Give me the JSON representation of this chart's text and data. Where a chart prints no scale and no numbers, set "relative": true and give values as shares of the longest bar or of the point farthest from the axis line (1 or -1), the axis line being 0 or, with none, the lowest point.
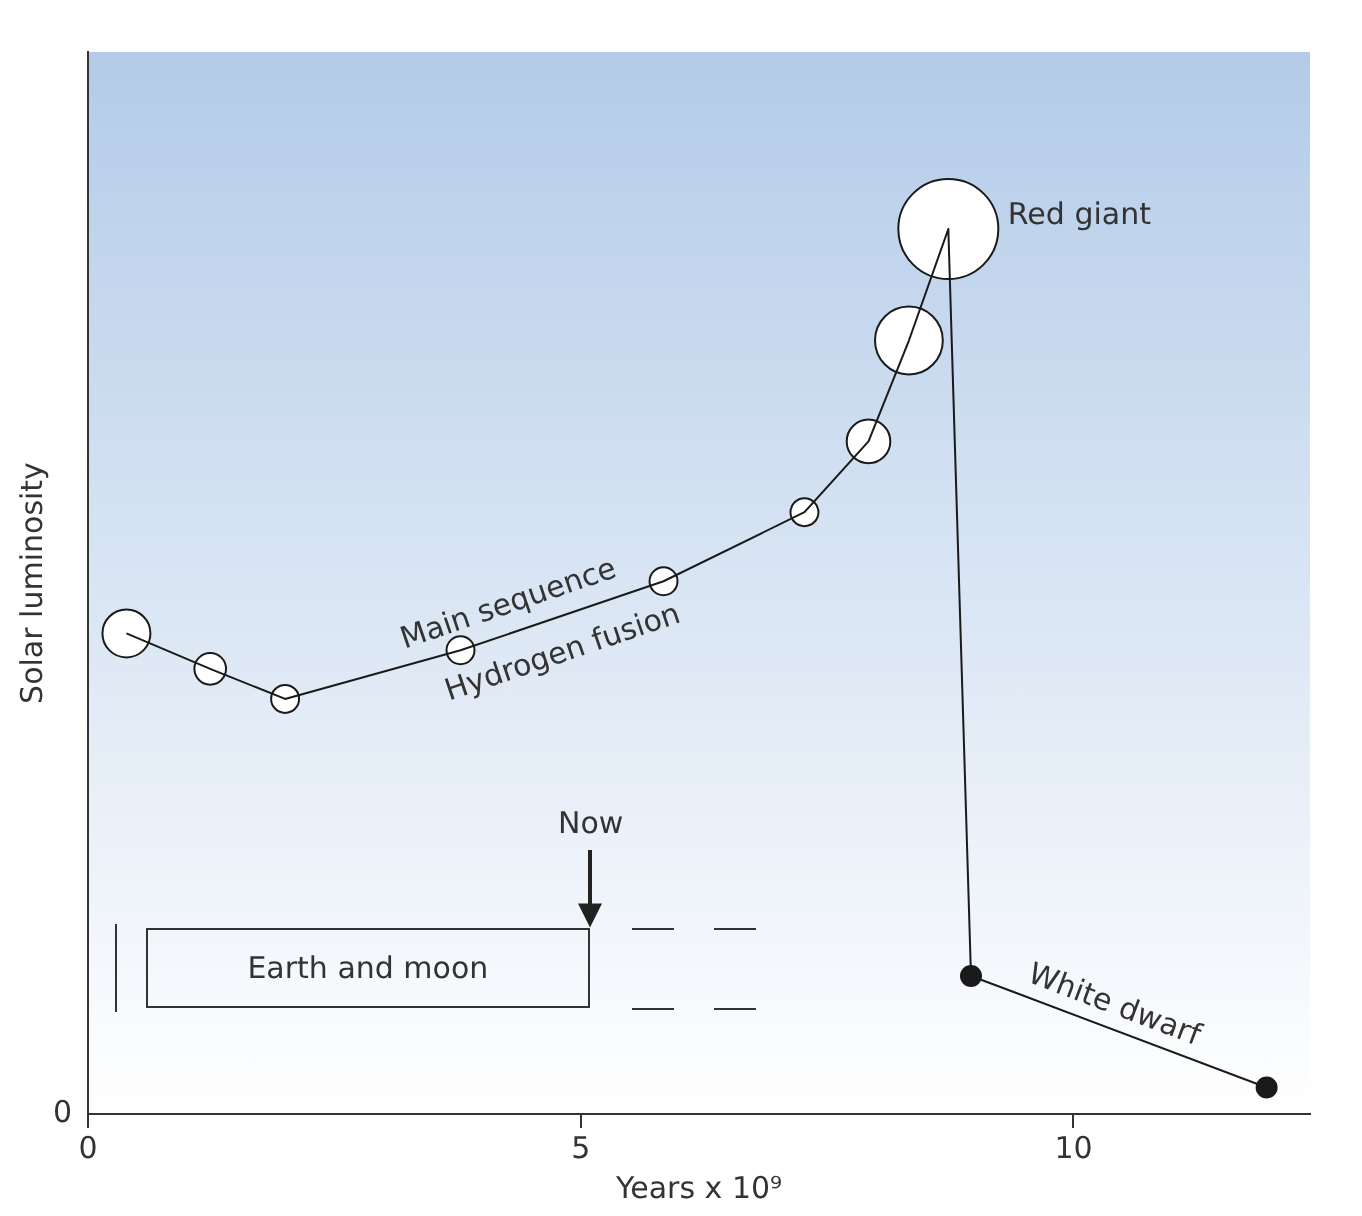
{
  "chart_data": {
    "type": "line",
    "relative": true,
    "xlabel": "Years x 10⁹",
    "ylabel": "Solar luminosity",
    "xlim": [
      0,
      12.4
    ],
    "xticks": [
      0,
      5,
      10
    ],
    "legend": false,
    "grid": false,
    "line_style": "solid",
    "series": [
      {
        "color": "#1a1a1a",
        "x": [
          0.39,
          1.24,
          2.0,
          3.78,
          5.84,
          7.27,
          7.92,
          8.33,
          8.73,
          8.96,
          11.96
        ],
        "values": [
          0.543,
          0.503,
          0.469,
          0.524,
          0.602,
          0.68,
          0.76,
          0.874,
          1,
          0.156,
          0.03
        ]
      },
      {
        "type": "bubble",
        "color": "#1a1a1a",
        "x": [
          0.39,
          1.24,
          2.0,
          3.78,
          5.84,
          7.27,
          7.92,
          8.33,
          8.73,
          8.96,
          11.96
        ],
        "values": [
          0.543,
          0.503,
          0.469,
          0.524,
          0.602,
          0.68,
          0.76,
          0.874,
          1,
          0.156,
          0.03
        ],
        "sizes": [
          0.23,
          0.1,
          0.078,
          0.078,
          0.078,
          0.078,
          0.19,
          0.46,
          1,
          0.04,
          0.04
        ],
        "colors": [
          "#ffffff",
          "#ffffff",
          "#ffffff",
          "#ffffff",
          "#ffffff",
          "#ffffff",
          "#ffffff",
          "#ffffff",
          "#ffffff",
          "#1a1a1a",
          "#1a1a1a"
        ]
      }
    ],
    "annotations": [
      "0",
      "Red giant",
      "Main sequence",
      "Hydrogen fusion",
      "White dwarf",
      "Now",
      "Earth and moon"
    ]
  }
}
